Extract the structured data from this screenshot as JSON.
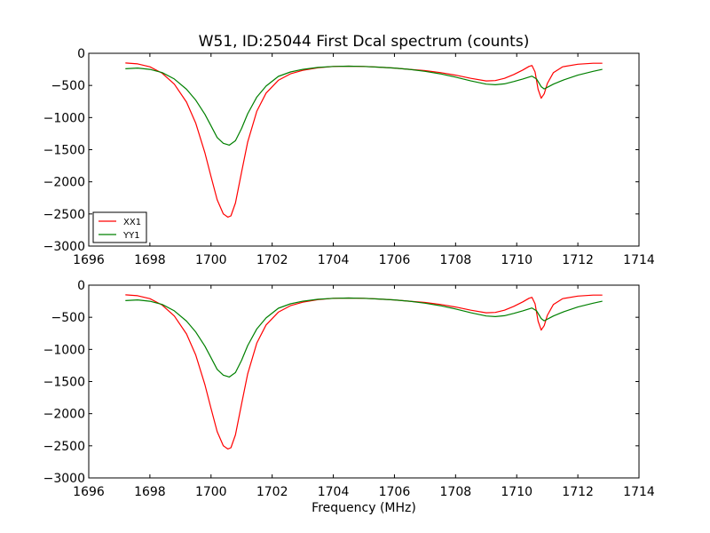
{
  "figure": {
    "title": "W51, ID:25044 First Dcal spectrum (counts)",
    "xlabel": "Frequency (MHz)"
  },
  "chart_data": [
    {
      "type": "line",
      "title": "W51, ID:25044 First Dcal spectrum (counts)",
      "xlabel": "",
      "ylabel": "",
      "xlim": [
        1696,
        1714
      ],
      "ylim": [
        -3000,
        0
      ],
      "xticks": [
        1696,
        1698,
        1700,
        1702,
        1704,
        1706,
        1708,
        1710,
        1712,
        1714
      ],
      "yticks": [
        0,
        -500,
        -1000,
        -1500,
        -2000,
        -2500,
        -3000
      ],
      "grid": false,
      "legend": "lower-left",
      "series": [
        {
          "name": "XX1",
          "color": "#ff0000",
          "x": [
            1697.2,
            1697.6,
            1698.0,
            1698.4,
            1698.8,
            1699.2,
            1699.5,
            1699.8,
            1700.0,
            1700.2,
            1700.4,
            1700.55,
            1700.65,
            1700.8,
            1701.0,
            1701.2,
            1701.5,
            1701.8,
            1702.2,
            1702.6,
            1703.0,
            1703.5,
            1704.0,
            1704.5,
            1705.0,
            1705.5,
            1706.0,
            1706.5,
            1707.0,
            1707.5,
            1708.0,
            1708.5,
            1709.0,
            1709.3,
            1709.6,
            1709.9,
            1710.2,
            1710.4,
            1710.5,
            1710.6,
            1710.7,
            1710.8,
            1710.9,
            1711.0,
            1711.2,
            1711.5,
            1712.0,
            1712.5,
            1712.8
          ],
          "values": [
            -150,
            -165,
            -210,
            -310,
            -480,
            -760,
            -1090,
            -1550,
            -1920,
            -2280,
            -2500,
            -2550,
            -2530,
            -2330,
            -1850,
            -1380,
            -900,
            -620,
            -420,
            -320,
            -265,
            -225,
            -205,
            -200,
            -205,
            -215,
            -230,
            -250,
            -270,
            -300,
            -340,
            -390,
            -430,
            -425,
            -390,
            -330,
            -260,
            -205,
            -190,
            -290,
            -560,
            -700,
            -630,
            -470,
            -300,
            -210,
            -170,
            -155,
            -155
          ]
        },
        {
          "name": "YY1",
          "color": "#008000",
          "x": [
            1697.2,
            1697.6,
            1698.0,
            1698.4,
            1698.8,
            1699.2,
            1699.5,
            1699.8,
            1700.0,
            1700.2,
            1700.4,
            1700.6,
            1700.8,
            1701.0,
            1701.2,
            1701.5,
            1701.8,
            1702.2,
            1702.6,
            1703.0,
            1703.5,
            1704.0,
            1704.5,
            1705.0,
            1705.5,
            1706.0,
            1706.5,
            1707.0,
            1707.5,
            1708.0,
            1708.5,
            1709.0,
            1709.3,
            1709.6,
            1709.9,
            1710.2,
            1710.5,
            1710.65,
            1710.8,
            1710.9,
            1711.0,
            1711.2,
            1711.5,
            1712.0,
            1712.5,
            1712.8
          ],
          "values": [
            -240,
            -230,
            -250,
            -300,
            -400,
            -560,
            -730,
            -950,
            -1130,
            -1310,
            -1400,
            -1430,
            -1360,
            -1170,
            -940,
            -680,
            -510,
            -360,
            -290,
            -250,
            -220,
            -205,
            -200,
            -205,
            -215,
            -230,
            -250,
            -280,
            -320,
            -370,
            -430,
            -480,
            -490,
            -475,
            -440,
            -400,
            -355,
            -400,
            -520,
            -555,
            -530,
            -480,
            -420,
            -340,
            -280,
            -250
          ]
        }
      ]
    },
    {
      "type": "line",
      "title": "",
      "xlabel": "Frequency (MHz)",
      "ylabel": "",
      "xlim": [
        1696,
        1714
      ],
      "ylim": [
        -3000,
        0
      ],
      "xticks": [
        1696,
        1698,
        1700,
        1702,
        1704,
        1706,
        1708,
        1710,
        1712,
        1714
      ],
      "yticks": [
        0,
        -500,
        -1000,
        -1500,
        -2000,
        -2500,
        -3000
      ],
      "grid": false,
      "series": [
        {
          "color": "#ff0000",
          "x": [
            1697.2,
            1697.6,
            1698.0,
            1698.4,
            1698.8,
            1699.2,
            1699.5,
            1699.8,
            1700.0,
            1700.2,
            1700.4,
            1700.55,
            1700.65,
            1700.8,
            1701.0,
            1701.2,
            1701.5,
            1701.8,
            1702.2,
            1702.6,
            1703.0,
            1703.5,
            1704.0,
            1704.5,
            1705.0,
            1705.5,
            1706.0,
            1706.5,
            1707.0,
            1707.5,
            1708.0,
            1708.5,
            1709.0,
            1709.3,
            1709.6,
            1709.9,
            1710.2,
            1710.4,
            1710.5,
            1710.6,
            1710.7,
            1710.8,
            1710.9,
            1711.0,
            1711.2,
            1711.5,
            1712.0,
            1712.5,
            1712.8
          ],
          "values": [
            -150,
            -165,
            -210,
            -310,
            -480,
            -760,
            -1090,
            -1550,
            -1920,
            -2280,
            -2500,
            -2550,
            -2530,
            -2330,
            -1850,
            -1380,
            -900,
            -620,
            -420,
            -320,
            -265,
            -225,
            -205,
            -200,
            -205,
            -215,
            -230,
            -250,
            -270,
            -300,
            -340,
            -390,
            -430,
            -425,
            -390,
            -330,
            -260,
            -205,
            -190,
            -290,
            -560,
            -700,
            -630,
            -470,
            -300,
            -210,
            -170,
            -155,
            -155
          ]
        },
        {
          "color": "#008000",
          "x": [
            1697.2,
            1697.6,
            1698.0,
            1698.4,
            1698.8,
            1699.2,
            1699.5,
            1699.8,
            1700.0,
            1700.2,
            1700.4,
            1700.6,
            1700.8,
            1701.0,
            1701.2,
            1701.5,
            1701.8,
            1702.2,
            1702.6,
            1703.0,
            1703.5,
            1704.0,
            1704.5,
            1705.0,
            1705.5,
            1706.0,
            1706.5,
            1707.0,
            1707.5,
            1708.0,
            1708.5,
            1709.0,
            1709.3,
            1709.6,
            1709.9,
            1710.2,
            1710.5,
            1710.65,
            1710.8,
            1710.9,
            1711.0,
            1711.2,
            1711.5,
            1712.0,
            1712.5,
            1712.8
          ],
          "values": [
            -240,
            -230,
            -250,
            -300,
            -400,
            -560,
            -730,
            -950,
            -1130,
            -1310,
            -1400,
            -1430,
            -1360,
            -1170,
            -940,
            -680,
            -510,
            -360,
            -290,
            -250,
            -220,
            -205,
            -200,
            -205,
            -215,
            -230,
            -250,
            -280,
            -320,
            -370,
            -430,
            -480,
            -490,
            -475,
            -440,
            -400,
            -355,
            -400,
            -520,
            -555,
            -530,
            -480,
            -420,
            -340,
            -280,
            -250
          ]
        }
      ]
    }
  ]
}
